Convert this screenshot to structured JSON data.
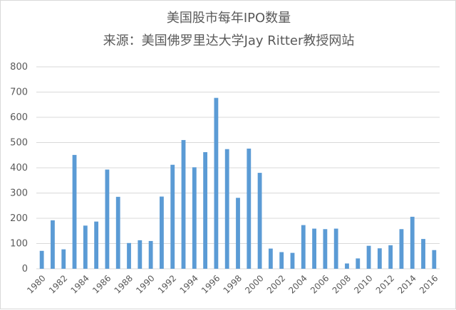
{
  "chart_data": {
    "type": "bar",
    "title": "美国股市每年IPO数量",
    "subtitle": "来源：美国佛罗里达大学Jay Ritter教授网站",
    "xlabel": "",
    "ylabel": "",
    "ylim": [
      0,
      800
    ],
    "yticks": [
      "0",
      "100",
      "200",
      "300",
      "400",
      "500",
      "600",
      "700",
      "800"
    ],
    "grid": true,
    "legend": "none",
    "bar_color": "#5b9bd5",
    "grid_color": "#d9d9d9",
    "text_color": "#595959",
    "categories": [
      "1980",
      "1981",
      "1982",
      "1983",
      "1984",
      "1985",
      "1986",
      "1987",
      "1988",
      "1989",
      "1990",
      "1991",
      "1992",
      "1993",
      "1994",
      "1995",
      "1996",
      "1997",
      "1998",
      "1999",
      "2000",
      "2001",
      "2002",
      "2003",
      "2004",
      "2005",
      "2006",
      "2007",
      "2008",
      "2009",
      "2010",
      "2011",
      "2012",
      "2013",
      "2014",
      "2015",
      "2016"
    ],
    "xtick_labels": [
      "1980",
      "",
      "1982",
      "",
      "1984",
      "",
      "1986",
      "",
      "1988",
      "",
      "1990",
      "",
      "1992",
      "",
      "1994",
      "",
      "1996",
      "",
      "1998",
      "",
      "2000",
      "",
      "2002",
      "",
      "2004",
      "",
      "2006",
      "",
      "2008",
      "",
      "2010",
      "",
      "2012",
      "",
      "2014",
      "",
      "2016"
    ],
    "values": [
      71,
      192,
      77,
      451,
      171,
      187,
      393,
      285,
      102,
      113,
      110,
      286,
      412,
      510,
      402,
      462,
      677,
      474,
      281,
      476,
      380,
      80,
      66,
      63,
      173,
      159,
      157,
      159,
      21,
      41,
      91,
      81,
      93,
      157,
      206,
      118,
      74
    ]
  }
}
